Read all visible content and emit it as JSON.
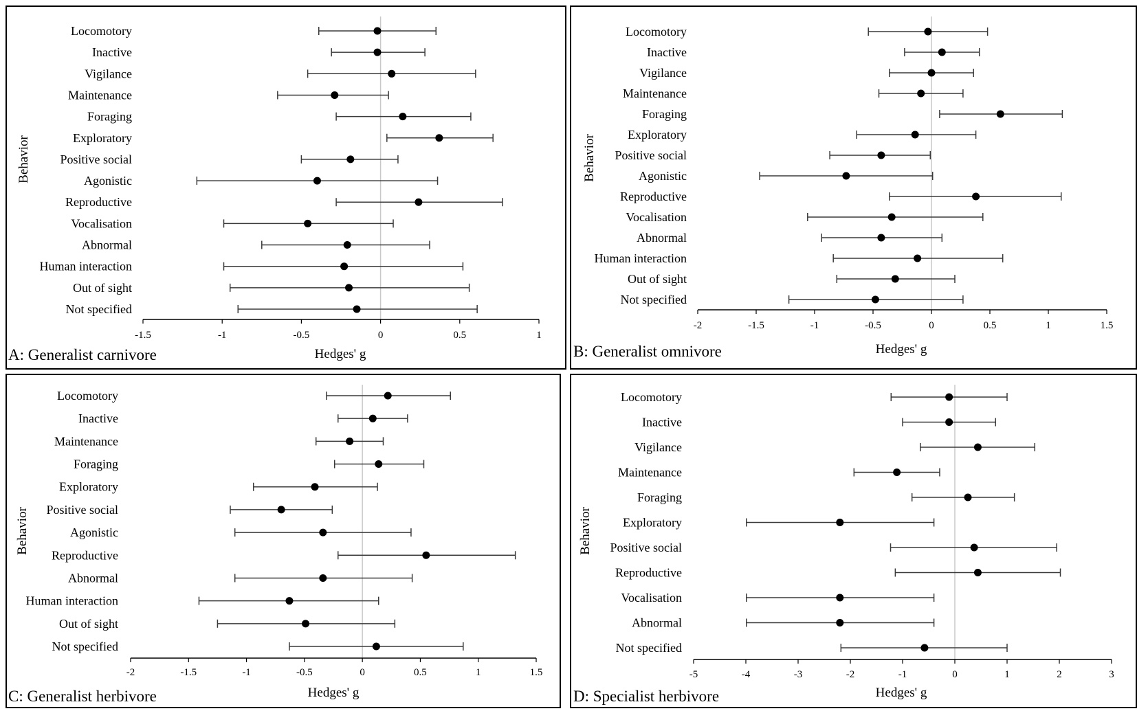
{
  "figure": {
    "x_axis_label": "Hedges' g",
    "y_axis_label": "Behavior"
  },
  "chart_data": [
    {
      "type": "forest",
      "title": "A: Generalist carnivore",
      "xlabel": "Hedges' g",
      "ylabel": "Behavior",
      "xlim": [
        -1.5,
        1
      ],
      "xticks": [
        -1.5,
        -1,
        -0.5,
        0,
        0.5,
        1
      ],
      "xtick_labels": [
        "-1.5",
        "-1",
        "-0.5",
        "0",
        "0.5",
        "1"
      ],
      "categories": [
        "Locomotory",
        "Inactive",
        "Vigilance",
        "Maintenance",
        "Foraging",
        "Exploratory",
        "Positive social",
        "Agonistic",
        "Reproductive",
        "Vocalisation",
        "Abnormal",
        "Human interaction",
        "Out of sight",
        "Not specified"
      ],
      "estimate": [
        -0.02,
        -0.02,
        0.07,
        -0.29,
        0.14,
        0.37,
        -0.19,
        -0.4,
        0.24,
        -0.46,
        -0.21,
        -0.23,
        -0.2,
        -0.15
      ],
      "lower": [
        -0.39,
        -0.31,
        -0.46,
        -0.65,
        -0.28,
        0.04,
        -0.5,
        -1.16,
        -0.28,
        -0.99,
        -0.75,
        -0.99,
        -0.95,
        -0.9
      ],
      "upper": [
        0.35,
        0.28,
        0.6,
        0.05,
        0.57,
        0.71,
        0.11,
        0.36,
        0.77,
        0.08,
        0.31,
        0.52,
        0.56,
        0.61
      ]
    },
    {
      "type": "forest",
      "title": "B: Generalist omnivore",
      "xlabel": "Hedges' g",
      "ylabel": "Behavior",
      "xlim": [
        -2,
        1.5
      ],
      "xticks": [
        -2,
        -1.5,
        -1,
        -0.5,
        0,
        0.5,
        1,
        1.5
      ],
      "xtick_labels": [
        "-2",
        "-1.5",
        "-1",
        "-0.5",
        "0",
        "0.5",
        "1",
        "1.5"
      ],
      "categories": [
        "Locomotory",
        "Inactive",
        "Vigilance",
        "Maintenance",
        "Foraging",
        "Exploratory",
        "Positive social",
        "Agonistic",
        "Reproductive",
        "Vocalisation",
        "Abnormal",
        "Human interaction",
        "Out of sight",
        "Not specified"
      ],
      "estimate": [
        -0.03,
        0.09,
        0.0,
        -0.09,
        0.59,
        -0.14,
        -0.43,
        -0.73,
        0.38,
        -0.34,
        -0.43,
        -0.12,
        -0.31,
        -0.48
      ],
      "lower": [
        -0.54,
        -0.23,
        -0.36,
        -0.45,
        0.07,
        -0.64,
        -0.87,
        -1.47,
        -0.36,
        -1.06,
        -0.94,
        -0.84,
        -0.81,
        -1.22
      ],
      "upper": [
        0.48,
        0.41,
        0.36,
        0.27,
        1.12,
        0.38,
        -0.01,
        0.01,
        1.11,
        0.44,
        0.09,
        0.61,
        0.2,
        0.27
      ]
    },
    {
      "type": "forest",
      "title": "C: Generalist herbivore",
      "xlabel": "Hedges' g",
      "ylabel": "Behavior",
      "xlim": [
        -2,
        1.5
      ],
      "xticks": [
        -2,
        -1.5,
        -1,
        -0.5,
        0,
        0.5,
        1,
        1.5
      ],
      "xtick_labels": [
        "-2",
        "-1.5",
        "-1",
        "-0.5",
        "0",
        "0.5",
        "1",
        "1.5"
      ],
      "categories": [
        "Locomotory",
        "Inactive",
        "Maintenance",
        "Foraging",
        "Exploratory",
        "Positive social",
        "Agonistic",
        "Reproductive",
        "Abnormal",
        "Human interaction",
        "Out of sight",
        "Not specified"
      ],
      "estimate": [
        0.22,
        0.09,
        -0.11,
        0.14,
        -0.41,
        -0.7,
        -0.34,
        0.55,
        -0.34,
        -0.63,
        -0.49,
        0.12
      ],
      "lower": [
        -0.31,
        -0.21,
        -0.4,
        -0.24,
        -0.94,
        -1.14,
        -1.1,
        -0.21,
        -1.1,
        -1.41,
        -1.25,
        -0.63
      ],
      "upper": [
        0.76,
        0.39,
        0.18,
        0.53,
        0.13,
        -0.26,
        0.42,
        1.32,
        0.43,
        0.14,
        0.28,
        0.87
      ]
    },
    {
      "type": "forest",
      "title": "D: Specialist herbivore",
      "xlabel": "Hedges' g",
      "ylabel": "Behavior",
      "xlim": [
        -5,
        3
      ],
      "xticks": [
        -5,
        -4,
        -3,
        -2,
        -1,
        0,
        1,
        2,
        3
      ],
      "xtick_labels": [
        "-5",
        "-4",
        "-3",
        "-2",
        "-1",
        "0",
        "1",
        "2",
        "3"
      ],
      "categories": [
        "Locomotory",
        "Inactive",
        "Vigilance",
        "Maintenance",
        "Foraging",
        "Exploratory",
        "Positive social",
        "Reproductive",
        "Vocalisation",
        "Abnormal",
        "Not specified"
      ],
      "estimate": [
        -0.11,
        -0.11,
        0.44,
        -1.11,
        0.25,
        -2.2,
        0.37,
        0.44,
        -2.2,
        -2.2,
        -0.58
      ],
      "lower": [
        -1.22,
        -1.0,
        -0.66,
        -1.93,
        -0.82,
        -3.99,
        -1.23,
        -1.14,
        -3.99,
        -3.99,
        -2.18
      ],
      "upper": [
        1.0,
        0.78,
        1.53,
        -0.29,
        1.14,
        -0.4,
        1.95,
        2.02,
        -0.4,
        -0.4,
        1.0
      ]
    }
  ]
}
